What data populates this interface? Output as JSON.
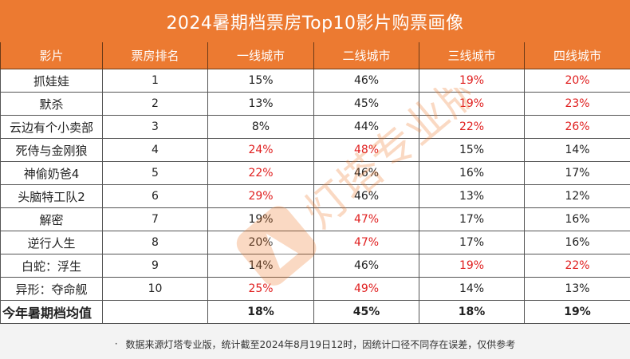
{
  "title": "2024暑期档票房Top10影片购票画像",
  "columns": [
    "影片",
    "票房排名",
    "一线城市",
    "二线城市",
    "三线城市",
    "四线城市"
  ],
  "rows": [
    {
      "film": "抓娃娃",
      "rank": "1",
      "t1": "15%",
      "t2": "46%",
      "t3": "19%",
      "t4": "20%",
      "hl": [
        false,
        false,
        true,
        true
      ]
    },
    {
      "film": "默杀",
      "rank": "2",
      "t1": "13%",
      "t2": "45%",
      "t3": "19%",
      "t4": "23%",
      "hl": [
        false,
        false,
        true,
        true
      ]
    },
    {
      "film": "云边有个小卖部",
      "rank": "3",
      "t1": "8%",
      "t2": "44%",
      "t3": "22%",
      "t4": "26%",
      "hl": [
        false,
        false,
        true,
        true
      ]
    },
    {
      "film": "死侍与金刚狼",
      "rank": "4",
      "t1": "24%",
      "t2": "48%",
      "t3": "15%",
      "t4": "14%",
      "hl": [
        true,
        true,
        false,
        false
      ]
    },
    {
      "film": "神偷奶爸4",
      "rank": "5",
      "t1": "22%",
      "t2": "46%",
      "t3": "16%",
      "t4": "17%",
      "hl": [
        true,
        false,
        false,
        false
      ]
    },
    {
      "film": "头脑特工队2",
      "rank": "6",
      "t1": "29%",
      "t2": "46%",
      "t3": "13%",
      "t4": "12%",
      "hl": [
        true,
        false,
        false,
        false
      ]
    },
    {
      "film": "解密",
      "rank": "7",
      "t1": "19%",
      "t2": "47%",
      "t3": "17%",
      "t4": "16%",
      "hl": [
        false,
        true,
        false,
        false
      ]
    },
    {
      "film": "逆行人生",
      "rank": "8",
      "t1": "20%",
      "t2": "47%",
      "t3": "17%",
      "t4": "16%",
      "hl": [
        false,
        true,
        false,
        false
      ]
    },
    {
      "film": "白蛇：浮生",
      "rank": "9",
      "t1": "14%",
      "t2": "46%",
      "t3": "19%",
      "t4": "22%",
      "hl": [
        false,
        false,
        true,
        true
      ]
    },
    {
      "film": "异形：夺命舰",
      "rank": "10",
      "t1": "25%",
      "t2": "49%",
      "t3": "14%",
      "t4": "13%",
      "hl": [
        true,
        true,
        false,
        false
      ]
    }
  ],
  "average": {
    "label": "今年暑期档均值",
    "rank": "",
    "t1": "18%",
    "t2": "45%",
    "t3": "18%",
    "t4": "19%"
  },
  "footer": {
    "bullet": "·",
    "note": "数据来源灯塔专业版，统计截至2024年8月19日12时，因统计口径不同存在误差，仅供参考"
  },
  "watermark": {
    "text": "灯塔专业版",
    "icon": "lighthouse-logo-icon"
  },
  "colors": {
    "header_bg": "#ec7a31",
    "highlight": "#e02020",
    "text": "#222222"
  }
}
